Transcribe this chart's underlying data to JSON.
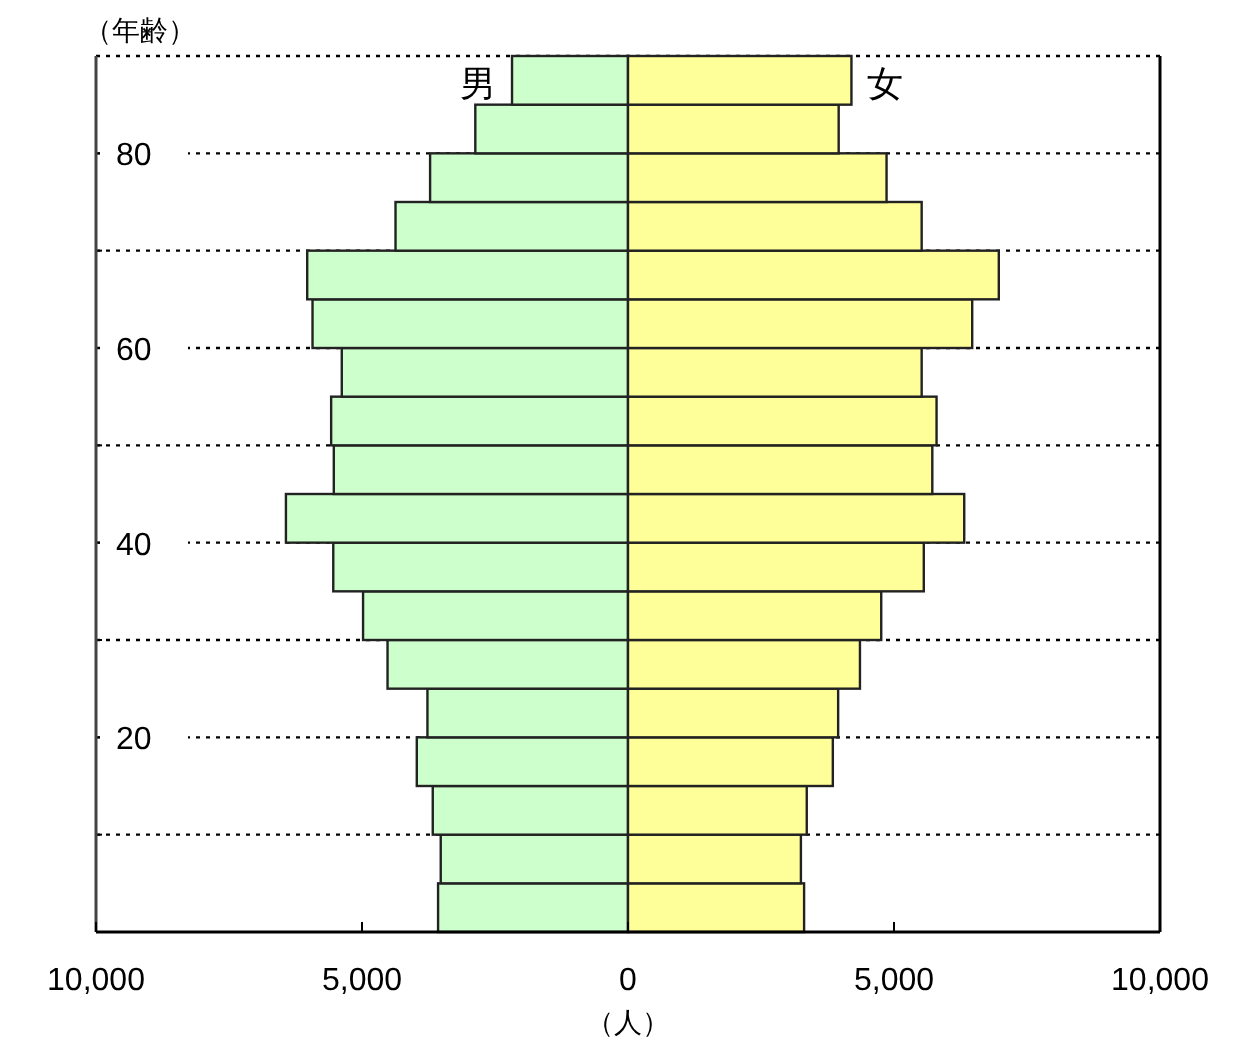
{
  "chart_data": {
    "type": "bar",
    "orientation": "horizontal",
    "ylabel": "（年齢）",
    "xlabel": "（人）",
    "x": [
      2.5,
      7.5,
      12.5,
      17.5,
      22.5,
      27.5,
      32.5,
      37.5,
      42.5,
      47.5,
      52.5,
      57.5,
      62.5,
      67.5,
      72.5,
      77.5,
      82.5,
      87.5
    ],
    "series": [
      {
        "name": "男",
        "color": "#ccffcc",
        "values": [
          -3570,
          -3520,
          -3670,
          -3970,
          -3770,
          -4520,
          -4980,
          -5540,
          -6430,
          -5530,
          -5580,
          -5380,
          -5930,
          -6030,
          -4370,
          -3720,
          -2870,
          -2180
        ]
      },
      {
        "name": "女",
        "color": "#ffff99",
        "values": [
          3310,
          3250,
          3360,
          3850,
          3950,
          4360,
          4760,
          5560,
          6320,
          5720,
          5800,
          5520,
          6470,
          6970,
          5520,
          4860,
          3960,
          4200
        ]
      }
    ],
    "xlim": [
      -10000,
      10000
    ],
    "xticks": [
      {
        "value": -10000,
        "label": "10,000"
      },
      {
        "value": -5000,
        "label": "5,000"
      },
      0,
      {
        "value": 5000,
        "label": "5,000"
      },
      {
        "value": 10000,
        "label": "10,000"
      }
    ],
    "ylim": [
      0,
      90
    ],
    "yticks": [
      {
        "value": 10,
        "label": null
      },
      20,
      {
        "value": 30,
        "label": null
      },
      40,
      {
        "value": 50,
        "label": null
      },
      60,
      {
        "value": 70,
        "label": null
      },
      80
    ],
    "grid": "y",
    "stacked": true
  }
}
